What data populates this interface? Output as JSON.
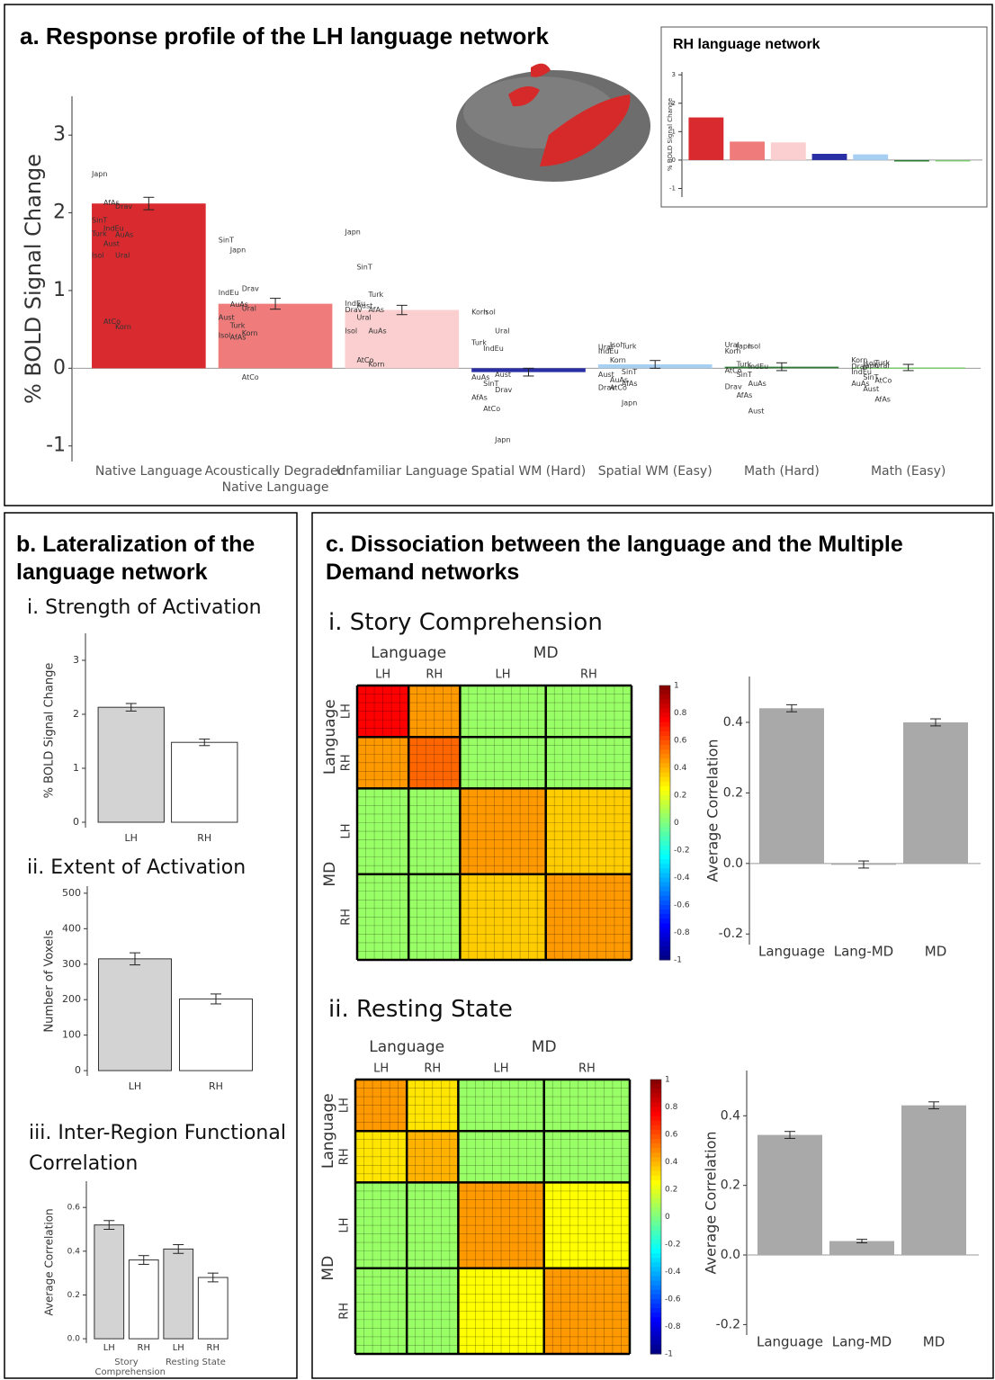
{
  "chart_data": [
    {
      "type": "bar",
      "title": "a. Response profile of the LH language network",
      "ylabel": "% BOLD Signal Change",
      "categories": [
        "Native Language",
        "Acoustically Degraded Native Language",
        "Unfamiliar Language",
        "Spatial WM (Hard)",
        "Spatial WM (Easy)",
        "Math (Hard)",
        "Math (Easy)"
      ],
      "values": [
        2.12,
        0.83,
        0.75,
        -0.05,
        0.05,
        0.02,
        0.01
      ],
      "errors": [
        0.08,
        0.07,
        0.06,
        0.05,
        0.05,
        0.05,
        0.04
      ],
      "colors": [
        "#d92b2f",
        "#f07b7b",
        "#fbcfcf",
        "#2b2fa6",
        "#a6cff2",
        "#2e7d32",
        "#7bc96f"
      ],
      "ylim": [
        -1.2,
        3.5
      ],
      "yticks": [
        -1,
        0,
        1,
        2,
        3
      ],
      "language_labels": [
        [
          {
            "name": "Japn",
            "value": 2.5
          },
          {
            "name": "AfAs",
            "value": 2.13
          },
          {
            "name": "Drav",
            "value": 2.08
          },
          {
            "name": "SinT",
            "value": 1.9
          },
          {
            "name": "IndEu",
            "value": 1.8
          },
          {
            "name": "AuAs",
            "value": 1.72
          },
          {
            "name": "Turk",
            "value": 1.73
          },
          {
            "name": "Aust",
            "value": 1.6
          },
          {
            "name": "Ural",
            "value": 1.45
          },
          {
            "name": "Isol",
            "value": 1.45
          },
          {
            "name": "AtCo",
            "value": 0.6
          },
          {
            "name": "Korn",
            "value": 0.53
          }
        ],
        [
          {
            "name": "SinT",
            "value": 1.65
          },
          {
            "name": "Japn",
            "value": 1.52
          },
          {
            "name": "Drav",
            "value": 1.02
          },
          {
            "name": "IndEu",
            "value": 0.97
          },
          {
            "name": "AuAs",
            "value": 0.82
          },
          {
            "name": "Ural",
            "value": 0.77
          },
          {
            "name": "Aust",
            "value": 0.65
          },
          {
            "name": "Turk",
            "value": 0.55
          },
          {
            "name": "Korn",
            "value": 0.45
          },
          {
            "name": "Isol",
            "value": 0.42
          },
          {
            "name": "AfAs",
            "value": 0.4
          },
          {
            "name": "AtCo",
            "value": -0.12
          }
        ],
        [
          {
            "name": "Japn",
            "value": 1.75
          },
          {
            "name": "SinT",
            "value": 1.3
          },
          {
            "name": "Turk",
            "value": 0.95
          },
          {
            "name": "IndEu",
            "value": 0.83
          },
          {
            "name": "Aust",
            "value": 0.8
          },
          {
            "name": "AfAs",
            "value": 0.75
          },
          {
            "name": "Drav",
            "value": 0.75
          },
          {
            "name": "Ural",
            "value": 0.65
          },
          {
            "name": "AuAs",
            "value": 0.48
          },
          {
            "name": "Isol",
            "value": 0.48
          },
          {
            "name": "AtCo",
            "value": 0.1
          },
          {
            "name": "Korn",
            "value": 0.05
          }
        ],
        [
          {
            "name": "Korn",
            "value": 0.72
          },
          {
            "name": "Isol",
            "value": 0.72
          },
          {
            "name": "Ural",
            "value": 0.48
          },
          {
            "name": "Turk",
            "value": 0.33
          },
          {
            "name": "IndEu",
            "value": 0.25
          },
          {
            "name": "Aust",
            "value": -0.08
          },
          {
            "name": "AuAs",
            "value": -0.12
          },
          {
            "name": "SinT",
            "value": -0.2
          },
          {
            "name": "Drav",
            "value": -0.28
          },
          {
            "name": "AfAs",
            "value": -0.38
          },
          {
            "name": "AtCo",
            "value": -0.52
          },
          {
            "name": "Japn",
            "value": -0.92
          }
        ],
        [
          {
            "name": "Ural",
            "value": 0.27
          },
          {
            "name": "Isol",
            "value": 0.3
          },
          {
            "name": "Turk",
            "value": 0.28
          },
          {
            "name": "IndEu",
            "value": 0.22
          },
          {
            "name": "Korn",
            "value": 0.1
          },
          {
            "name": "SinT",
            "value": -0.05
          },
          {
            "name": "Aust",
            "value": -0.08
          },
          {
            "name": "AuAs",
            "value": -0.15
          },
          {
            "name": "AfAs",
            "value": -0.2
          },
          {
            "name": "Drav",
            "value": -0.25
          },
          {
            "name": "AtCo",
            "value": -0.25
          },
          {
            "name": "Japn",
            "value": -0.45
          }
        ],
        [
          {
            "name": "Ural",
            "value": 0.3
          },
          {
            "name": "Japn",
            "value": 0.28
          },
          {
            "name": "Isol",
            "value": 0.28
          },
          {
            "name": "Korn",
            "value": 0.22
          },
          {
            "name": "Turk",
            "value": 0.05
          },
          {
            "name": "IndEu",
            "value": 0.02
          },
          {
            "name": "AtCo",
            "value": -0.03
          },
          {
            "name": "SinT",
            "value": -0.08
          },
          {
            "name": "AuAs",
            "value": -0.2
          },
          {
            "name": "Drav",
            "value": -0.24
          },
          {
            "name": "AfAs",
            "value": -0.35
          },
          {
            "name": "Aust",
            "value": -0.55
          }
        ],
        [
          {
            "name": "Korn",
            "value": 0.1
          },
          {
            "name": "Isol",
            "value": 0.06
          },
          {
            "name": "Turk",
            "value": 0.07
          },
          {
            "name": "Drav",
            "value": 0.02
          },
          {
            "name": "Japn",
            "value": 0.03
          },
          {
            "name": "Ural",
            "value": 0.03
          },
          {
            "name": "IndEu",
            "value": -0.05
          },
          {
            "name": "SinT",
            "value": -0.12
          },
          {
            "name": "AtCo",
            "value": -0.16
          },
          {
            "name": "AuAs",
            "value": -0.2
          },
          {
            "name": "Aust",
            "value": -0.27
          },
          {
            "name": "AfAs",
            "value": -0.4
          }
        ]
      ]
    },
    {
      "type": "bar",
      "title": "RH language network",
      "ylabel": "% BOLD Signal Change",
      "values": [
        1.5,
        0.65,
        0.62,
        0.22,
        0.2,
        -0.05,
        0.0
      ],
      "colors": [
        "#d92b2f",
        "#f07b7b",
        "#fbcfcf",
        "#2b2fa6",
        "#a6cff2",
        "#2e7d32",
        "#7bc96f"
      ],
      "ylim": [
        -1.3,
        3.1
      ],
      "yticks": [
        -1,
        0,
        1,
        2,
        3
      ]
    },
    {
      "type": "bar",
      "section": "b. Lateralization of the language network",
      "title": "i. Strength of Activation",
      "ylabel": "% BOLD Signal Change",
      "categories": [
        "LH",
        "RH"
      ],
      "values": [
        2.13,
        1.48
      ],
      "errors": [
        0.07,
        0.06
      ],
      "colors": [
        "#d3d3d3",
        "#ffffff"
      ],
      "ylim": [
        -0.1,
        3.5
      ],
      "yticks": [
        0,
        1,
        2,
        3
      ]
    },
    {
      "type": "bar",
      "title": "ii. Extent of Activation",
      "ylabel": "Number of Voxels",
      "categories": [
        "LH",
        "RH"
      ],
      "values": [
        315,
        202
      ],
      "errors": [
        17,
        14
      ],
      "colors": [
        "#d3d3d3",
        "#ffffff"
      ],
      "ylim": [
        -15,
        520
      ],
      "yticks": [
        0,
        100,
        200,
        300,
        400,
        500
      ]
    },
    {
      "type": "bar",
      "title": "iii. Inter-Region Functional Correlation",
      "ylabel": "Average Correlation",
      "categories": [
        "LH",
        "RH",
        "LH",
        "RH"
      ],
      "groups": [
        "Story Comprehension",
        "Resting State"
      ],
      "values": [
        0.52,
        0.36,
        0.41,
        0.28
      ],
      "errors": [
        0.02,
        0.02,
        0.02,
        0.02
      ],
      "colors": [
        "#d3d3d3",
        "#ffffff",
        "#d3d3d3",
        "#ffffff"
      ],
      "ylim": [
        -0.02,
        0.72
      ],
      "yticks": [
        {
          "value": 0,
          "label": "0.0"
        },
        0.2,
        0.4,
        0.6
      ]
    },
    {
      "type": "heatmap",
      "section": "c. Dissociation between the language and the Multiple Demand networks",
      "title": "i. Story Comprehension",
      "group_labels": [
        "Language",
        "MD"
      ],
      "hemisphere_labels": [
        "LH",
        "RH",
        "LH",
        "RH"
      ],
      "matrix": [
        [
          0.75,
          0.45,
          0.05,
          0.05
        ],
        [
          0.45,
          0.55,
          0.05,
          0.05
        ],
        [
          0.05,
          0.05,
          0.45,
          0.35
        ],
        [
          0.05,
          0.05,
          0.35,
          0.45
        ]
      ],
      "zlim": [
        -1,
        1
      ],
      "colorbar_ticks": [
        1,
        0.8,
        0.6,
        0.4,
        0.2,
        0,
        -0.2,
        -0.4,
        -0.6,
        -0.8,
        -1
      ]
    },
    {
      "type": "bar",
      "ylabel": "Average Correlation",
      "categories": [
        "Language",
        "Lang-MD",
        "MD"
      ],
      "values": [
        0.44,
        -0.003,
        0.4
      ],
      "errors": [
        0.01,
        0.01,
        0.01
      ],
      "color": "#a9a9a9",
      "ylim": [
        -0.23,
        0.53
      ],
      "yticks": [
        -0.2,
        {
          "value": 0,
          "label": "0.0"
        },
        0.2,
        0.4
      ]
    },
    {
      "type": "heatmap",
      "title": "ii. Resting State",
      "group_labels": [
        "Language",
        "MD"
      ],
      "hemisphere_labels": [
        "LH",
        "RH",
        "LH",
        "RH"
      ],
      "matrix": [
        [
          0.45,
          0.3,
          0.05,
          0.05
        ],
        [
          0.3,
          0.4,
          0.05,
          0.05
        ],
        [
          0.05,
          0.05,
          0.45,
          0.25
        ],
        [
          0.05,
          0.05,
          0.25,
          0.45
        ]
      ],
      "zlim": [
        -1,
        1
      ],
      "colorbar_ticks": [
        1,
        0.8,
        0.6,
        0.4,
        0.2,
        0,
        -0.2,
        -0.4,
        -0.6,
        -0.8,
        -1
      ]
    },
    {
      "type": "bar",
      "ylabel": "Average Correlation",
      "categories": [
        "Language",
        "Lang-MD",
        "MD"
      ],
      "values": [
        0.345,
        0.04,
        0.43
      ],
      "errors": [
        0.01,
        0.005,
        0.01
      ],
      "color": "#a9a9a9",
      "ylim": [
        -0.23,
        0.53
      ],
      "yticks": [
        -0.2,
        {
          "value": 0,
          "label": "0.0"
        },
        0.2,
        0.4
      ]
    }
  ]
}
